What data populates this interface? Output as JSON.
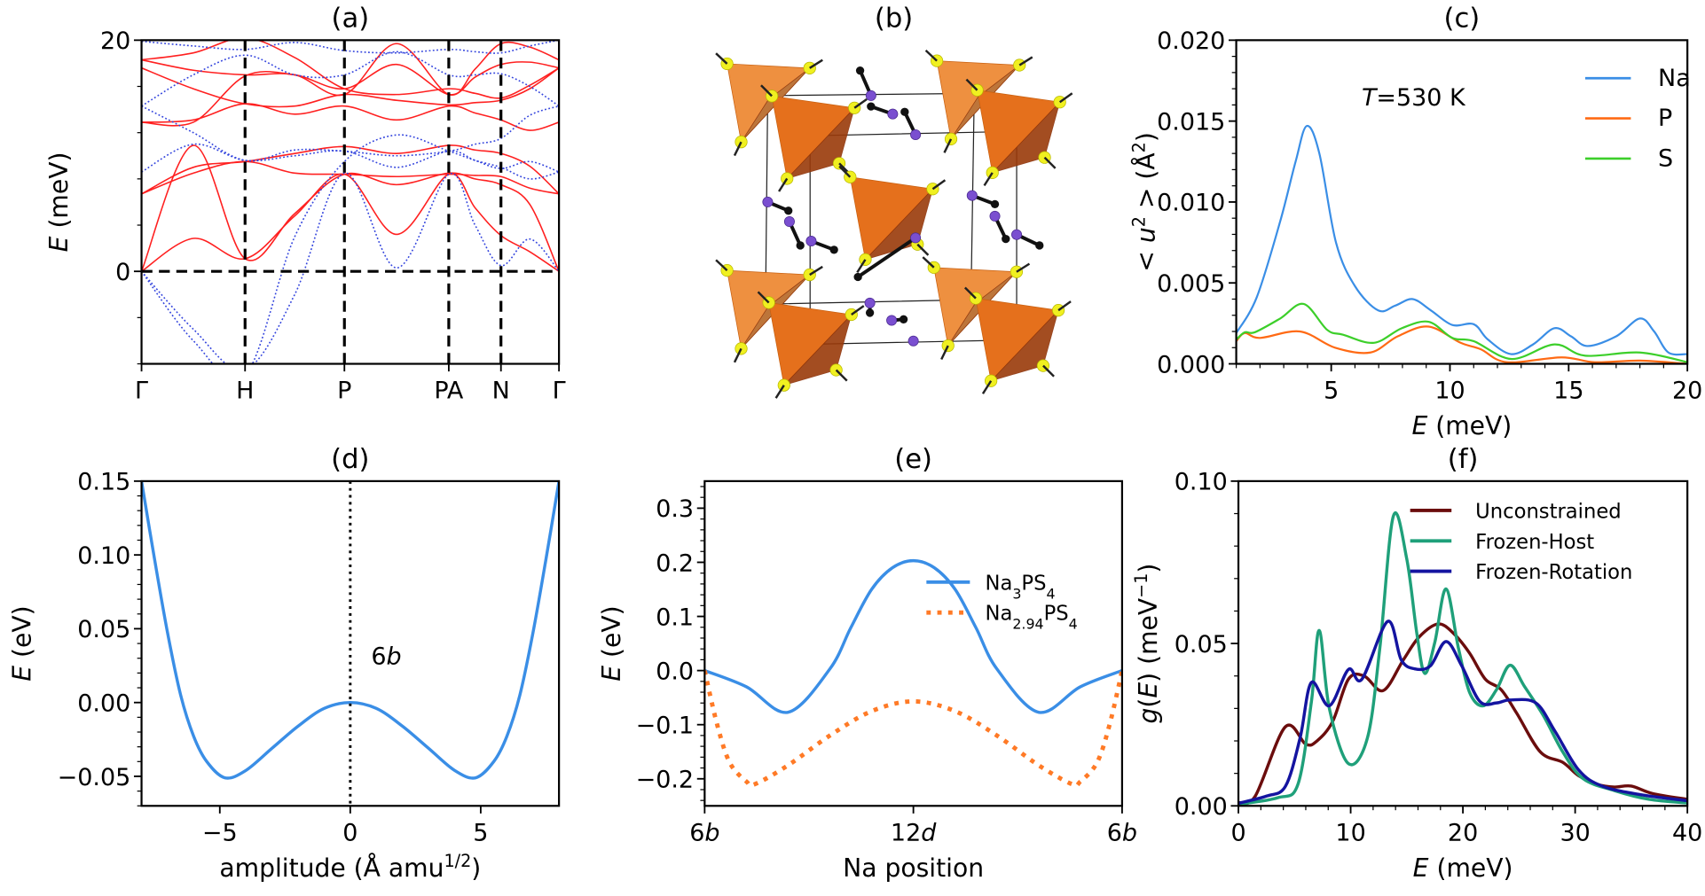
{
  "figure": {
    "panel_b": {
      "title": "(b)",
      "description_colors": {
        "tetrahedron": "#e07020",
        "sulfur": "#f0f020",
        "sodium": "#7a4fd0",
        "bond": "#111111"
      }
    }
  },
  "chart_data": [
    {
      "panel": "a",
      "title": "(a)",
      "type": "line",
      "ylabel": [
        {
          "t": "E",
          "i": true
        },
        {
          "t": " (meV)"
        }
      ],
      "xlim": [
        0,
        1
      ],
      "ylim": [
        -8,
        20
      ],
      "xticks": [
        0,
        0.248,
        0.486,
        0.736,
        0.861,
        1.0
      ],
      "xticklabels": [
        "Γ",
        "H",
        "P",
        "PA",
        "N",
        "Γ"
      ],
      "yticks": [
        0,
        20
      ],
      "yticklabels": [
        "0",
        "20"
      ],
      "yminor_step": 4,
      "dashed_lines": {
        "vertical_at": [
          0.248,
          0.486,
          0.736,
          0.861
        ],
        "horizontal_at": [
          0
        ]
      },
      "x": [
        0,
        0.124,
        0.248,
        0.367,
        0.486,
        0.611,
        0.736,
        0.799,
        0.861,
        0.93,
        1.0
      ],
      "series": [
        {
          "color": "#ff2020",
          "style": "solid",
          "values": [
            0,
            2.85,
            1.1,
            4.8,
            8.4,
            3.2,
            8.4,
            5.5,
            3.1,
            1.7,
            0
          ]
        },
        {
          "color": "#ff2020",
          "style": "solid",
          "values": [
            0,
            10.9,
            1.1,
            5.0,
            8.4,
            7.5,
            8.5,
            8.0,
            7.5,
            5.8,
            0
          ]
        },
        {
          "color": "#ff2020",
          "style": "solid",
          "values": [
            6.7,
            9.0,
            9.5,
            10.2,
            10.8,
            10.2,
            10.9,
            10.5,
            10.2,
            9.1,
            6.7
          ]
        },
        {
          "color": "#ff2020",
          "style": "solid",
          "values": [
            6.7,
            8.5,
            9.5,
            8.5,
            8.4,
            8.2,
            8.4,
            8.3,
            8.2,
            7.2,
            6.7
          ]
        },
        {
          "color": "#ff2020",
          "style": "solid",
          "values": [
            12.9,
            12.9,
            16.9,
            17.0,
            15.8,
            17.9,
            15.3,
            16.8,
            17.9,
            18.1,
            17.6
          ]
        },
        {
          "color": "#ff2020",
          "style": "solid",
          "values": [
            12.9,
            13.1,
            14.5,
            13.6,
            14.3,
            13.1,
            14.3,
            13.7,
            13.1,
            12.2,
            12.9
          ]
        },
        {
          "color": "#ff2020",
          "style": "solid",
          "values": [
            17.6,
            15.8,
            14.5,
            14.3,
            15.3,
            14.8,
            14.4,
            14.6,
            14.8,
            15.8,
            17.6
          ]
        },
        {
          "color": "#ff2020",
          "style": "solid",
          "values": [
            18.3,
            17.4,
            17.0,
            17.0,
            15.3,
            19.7,
            15.3,
            17.5,
            19.7,
            19.4,
            18.3
          ]
        },
        {
          "color": "#ff2020",
          "style": "solid",
          "values": [
            18.3,
            18.9,
            20.2,
            18.5,
            15.8,
            15.3,
            15.8,
            15.4,
            15.0,
            16.1,
            17.6
          ]
        },
        {
          "color": "#3344dd",
          "style": "dotted",
          "values": [
            0,
            -5,
            -8.5,
            -2,
            8.5,
            0.3,
            8.4,
            4.0,
            0.5,
            2.8,
            0
          ]
        },
        {
          "color": "#3344dd",
          "style": "dotted",
          "values": [
            0,
            -6,
            -9,
            3,
            9.5,
            11.8,
            10.4,
            9.6,
            9.0,
            8.0,
            8.6
          ]
        },
        {
          "color": "#3344dd",
          "style": "dotted",
          "values": [
            8.6,
            11.0,
            9.6,
            10.0,
            10.4,
            9.0,
            10.4,
            9.6,
            8.9,
            9.5,
            8.6
          ]
        },
        {
          "color": "#3344dd",
          "style": "dotted",
          "values": [
            14.3,
            17.0,
            18.7,
            17.0,
            17.0,
            19.0,
            17.0,
            17.0,
            17.1,
            16.0,
            14.3
          ]
        },
        {
          "color": "#3344dd",
          "style": "dotted",
          "values": [
            14.3,
            12.0,
            9.6,
            10.5,
            10.4,
            10.0,
            10.4,
            11.0,
            11.5,
            13.5,
            14.3
          ]
        },
        {
          "color": "#3344dd",
          "style": "dotted",
          "values": [
            19.9,
            19.5,
            19.2,
            19.8,
            19.1,
            18.9,
            19.2,
            19.0,
            18.9,
            19.5,
            20.0
          ]
        }
      ]
    },
    {
      "panel": "c",
      "title": "(c)",
      "type": "line",
      "xlabel": [
        {
          "t": "E",
          "i": true
        },
        {
          "t": " (meV)"
        }
      ],
      "ylabel": [
        {
          "t": "< "
        },
        {
          "t": "u",
          "i": true
        },
        {
          "t": "2",
          "sup": true
        },
        {
          "t": " > (Å"
        },
        {
          "t": "2",
          "sup": true
        },
        {
          "t": ")"
        }
      ],
      "annotation": [
        {
          "t": "T",
          "i": true
        },
        {
          "t": "=530 K"
        }
      ],
      "xlim": [
        1,
        20
      ],
      "ylim": [
        0,
        0.02
      ],
      "xticks": [
        5,
        10,
        15,
        20
      ],
      "xticklabels": [
        "5",
        "10",
        "15",
        "20"
      ],
      "xminor_step": 1,
      "yticks": [
        0,
        0.005,
        0.01,
        0.015,
        0.02
      ],
      "yticklabels": [
        "0.000",
        "0.005",
        "0.010",
        "0.015",
        "0.020"
      ],
      "yminor_step": 0.001,
      "legend": "top-right",
      "series": [
        {
          "name": "Na",
          "color": "#3a8ee6",
          "style": "solid",
          "x": [
            1,
            1.86,
            2.85,
            3.5,
            3.97,
            4.5,
            5.2,
            6.0,
            6.98,
            7.7,
            8.43,
            9.2,
            10.1,
            11.0,
            11.6,
            12.57,
            13.5,
            14.4,
            15.1,
            15.8,
            17.0,
            18.0,
            18.6,
            19.2,
            20
          ],
          "y": [
            0.0019,
            0.0041,
            0.0088,
            0.0125,
            0.0147,
            0.013,
            0.0075,
            0.0048,
            0.0033,
            0.0036,
            0.004,
            0.0033,
            0.0024,
            0.00245,
            0.0015,
            0.0006,
            0.0012,
            0.0022,
            0.0017,
            0.0011,
            0.0017,
            0.0028,
            0.002,
            0.0007,
            0.0006
          ]
        },
        {
          "name": "P",
          "color": "#ff6a14",
          "style": "solid",
          "x": [
            1,
            1.36,
            2.0,
            3.68,
            5.16,
            6.65,
            7.8,
            9.1,
            10.45,
            11.3,
            12.4,
            14.7,
            16.1,
            18.0,
            20
          ],
          "y": [
            0.0014,
            0.0019,
            0.0016,
            0.002,
            0.001,
            0.0007,
            0.0017,
            0.0023,
            0.0013,
            0.0009,
            0.0001,
            0.0004,
            0.0001,
            0.0002,
            0.0
          ]
        },
        {
          "name": "S",
          "color": "#3ccf2a",
          "style": "solid",
          "x": [
            1,
            1.36,
            1.78,
            2.85,
            3.84,
            4.83,
            5.5,
            6.8,
            7.97,
            9.1,
            10.1,
            11.0,
            12.6,
            14.4,
            15.7,
            18.0,
            20
          ],
          "y": [
            0.0015,
            0.00195,
            0.00195,
            0.0028,
            0.0037,
            0.0021,
            0.0018,
            0.0013,
            0.0022,
            0.0026,
            0.0016,
            0.0014,
            0.0003,
            0.0012,
            0.0005,
            0.0007,
            0.0001
          ]
        }
      ]
    },
    {
      "panel": "d",
      "title": "(d)",
      "type": "line",
      "xlabel": [
        {
          "t": "amplitude (Å amu"
        },
        {
          "t": "1/2",
          "sup": true
        },
        {
          "t": ")"
        }
      ],
      "ylabel": [
        {
          "t": "E",
          "i": true
        },
        {
          "t": " (eV)"
        }
      ],
      "annotation": [
        {
          "t": "6"
        },
        {
          "t": "b",
          "i": true
        }
      ],
      "xlim": [
        -8,
        8
      ],
      "ylim": [
        -0.07,
        0.15
      ],
      "xticks": [
        -5,
        0,
        5
      ],
      "xticklabels": [
        "−5",
        "0",
        "5"
      ],
      "yticks": [
        -0.05,
        0,
        0.05,
        0.1,
        0.15
      ],
      "yticklabels": [
        "−0.05",
        "0.00",
        "0.05",
        "0.10",
        "0.15"
      ],
      "yminor_step": 0.01,
      "dotted_vertical_at": 0,
      "series": [
        {
          "color": "#3a8ee6",
          "style": "solid",
          "x": [
            -8,
            -7.5,
            -7,
            -6.5,
            -6,
            -5.5,
            -4.8,
            -4,
            -3,
            -2,
            -1,
            0,
            1,
            2,
            3,
            4,
            4.8,
            5.5,
            6,
            6.5,
            7,
            7.5,
            8
          ],
          "y": [
            0.15,
            0.097,
            0.047,
            0.005,
            -0.023,
            -0.04,
            -0.051,
            -0.046,
            -0.031,
            -0.016,
            -0.004,
            0,
            -0.004,
            -0.016,
            -0.031,
            -0.046,
            -0.051,
            -0.04,
            -0.023,
            0.005,
            0.047,
            0.097,
            0.15
          ]
        }
      ]
    },
    {
      "panel": "e",
      "title": "(e)",
      "type": "line",
      "xlabel": [
        {
          "t": "Na position"
        }
      ],
      "ylabel": [
        {
          "t": "E",
          "i": true
        },
        {
          "t": " (eV)"
        }
      ],
      "xlim": [
        0,
        1
      ],
      "ylim": [
        -0.25,
        0.35
      ],
      "xticks": [
        0,
        0.5,
        1
      ],
      "xticklabels_rich": [
        [
          {
            "t": "6"
          },
          {
            "t": "b",
            "i": true
          }
        ],
        [
          {
            "t": "12"
          },
          {
            "t": "d",
            "i": true
          }
        ],
        [
          {
            "t": "6"
          },
          {
            "t": "b",
            "i": true
          }
        ]
      ],
      "yticks": [
        -0.2,
        -0.1,
        0,
        0.1,
        0.2,
        0.3
      ],
      "yticklabels": [
        "−0.2",
        "−0.1",
        "0.0",
        "0.1",
        "0.2",
        "0.3"
      ],
      "yminor_step": 0.02,
      "legend": "top-right",
      "series": [
        {
          "name": [
            {
              "t": "Na"
            },
            {
              "t": "3",
              "sub": true
            },
            {
              "t": "PS"
            },
            {
              "t": "4",
              "sub": true
            }
          ],
          "color": "#3a8ee6",
          "style": "solid",
          "x": [
            0,
            0.1,
            0.2,
            0.3,
            0.35,
            0.4,
            0.45,
            0.5,
            0.55,
            0.6,
            0.65,
            0.7,
            0.8,
            0.9,
            1
          ],
          "y": [
            0,
            -0.03,
            -0.077,
            0.003,
            0.079,
            0.15,
            0.19,
            0.203,
            0.19,
            0.15,
            0.079,
            0.003,
            -0.077,
            -0.03,
            0
          ]
        },
        {
          "name": [
            {
              "t": "Na"
            },
            {
              "t": "2.94",
              "sub": true
            },
            {
              "t": "PS"
            },
            {
              "t": "4",
              "sub": true
            }
          ],
          "color": "#ff7a26",
          "style": "dotted",
          "x": [
            0,
            0.03,
            0.06,
            0.1,
            0.12,
            0.2,
            0.3,
            0.4,
            0.5,
            0.6,
            0.7,
            0.8,
            0.88,
            0.9,
            0.94,
            0.97,
            1
          ],
          "y": [
            0,
            -0.1,
            -0.17,
            -0.205,
            -0.21,
            -0.175,
            -0.12,
            -0.075,
            -0.057,
            -0.075,
            -0.12,
            -0.175,
            -0.21,
            -0.205,
            -0.17,
            -0.1,
            0
          ]
        }
      ]
    },
    {
      "panel": "f",
      "title": "(f)",
      "type": "line",
      "xlabel": [
        {
          "t": "E",
          "i": true
        },
        {
          "t": " (meV)"
        }
      ],
      "ylabel": [
        {
          "t": "g",
          "i": true
        },
        {
          "t": "("
        },
        {
          "t": "E",
          "i": true
        },
        {
          "t": ")  (meV"
        },
        {
          "t": "−1",
          "sup": true
        },
        {
          "t": ")"
        }
      ],
      "xlim": [
        0,
        40
      ],
      "ylim": [
        0,
        0.1
      ],
      "xticks": [
        0,
        10,
        20,
        30,
        40
      ],
      "xticklabels": [
        "0",
        "10",
        "20",
        "30",
        "40"
      ],
      "xminor_step": 2,
      "yticks": [
        0,
        0.05,
        0.1
      ],
      "yticklabels": [
        "0.00",
        "0.05",
        "0.10"
      ],
      "yminor_step": 0.01,
      "legend": "top-right",
      "series": [
        {
          "name": "Unconstrained",
          "color": "#6b0d0d",
          "style": "solid",
          "x": [
            0,
            1.5,
            4.17,
            6.0,
            7.0,
            8.4,
            9.8,
            11.2,
            12.9,
            14.7,
            16.1,
            17.8,
            19.2,
            20.6,
            22,
            23.4,
            24.8,
            26.9,
            28.9,
            30.3,
            32,
            33.5,
            35,
            36.9,
            40
          ],
          "y": [
            0.001,
            0.003,
            0.0243,
            0.019,
            0.02,
            0.026,
            0.039,
            0.04,
            0.0355,
            0.045,
            0.052,
            0.056,
            0.053,
            0.047,
            0.039,
            0.0358,
            0.0285,
            0.0166,
            0.0134,
            0.0093,
            0.0066,
            0.0058,
            0.0061,
            0.0038,
            0.002
          ]
        },
        {
          "name": "Frozen-Host",
          "color": "#1fa07a",
          "style": "solid",
          "x": [
            0,
            3.5,
            5.3,
            6.5,
            7.2,
            8.1,
            9.8,
            11.5,
            12.6,
            13.8,
            15,
            15.9,
            16.6,
            17.5,
            18.5,
            19.6,
            20.6,
            21.8,
            23,
            24.2,
            25.5,
            27.2,
            28.9,
            30.7,
            33.5,
            36.6,
            40
          ],
          "y": [
            0.0005,
            0.0025,
            0.0066,
            0.032,
            0.054,
            0.03,
            0.013,
            0.021,
            0.0486,
            0.0892,
            0.076,
            0.053,
            0.0408,
            0.0504,
            0.0668,
            0.0486,
            0.0349,
            0.0308,
            0.0358,
            0.0433,
            0.0367,
            0.0276,
            0.0166,
            0.0084,
            0.0047,
            0.002,
            0.0009
          ]
        },
        {
          "name": "Frozen-Rotation",
          "color": "#1414a0",
          "style": "solid",
          "x": [
            0,
            2.5,
            4.2,
            5.5,
            6.5,
            8.1,
            9.8,
            11,
            13.3,
            14.5,
            15.7,
            17.1,
            18.5,
            19.9,
            21.5,
            23,
            24.2,
            26.5,
            28.2,
            30.3,
            32.4,
            35.9,
            40
          ],
          "y": [
            0.0008,
            0.003,
            0.0061,
            0.021,
            0.038,
            0.0308,
            0.042,
            0.039,
            0.0568,
            0.045,
            0.0422,
            0.0431,
            0.0506,
            0.0431,
            0.0322,
            0.0317,
            0.0326,
            0.0317,
            0.023,
            0.0111,
            0.0061,
            0.0034,
            0.0016
          ]
        }
      ]
    }
  ]
}
